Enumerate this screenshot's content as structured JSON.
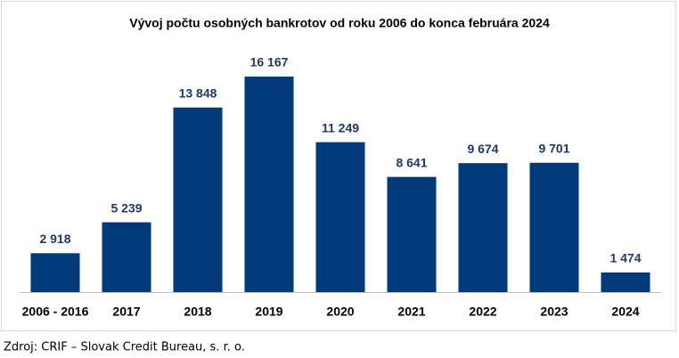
{
  "chart_data": {
    "type": "bar",
    "title": "Vývoj počtu osobných bankrotov od roku 2006 do konca februára 2024",
    "categories": [
      "2006 - 2016",
      "2017",
      "2018",
      "2019",
      "2020",
      "2021",
      "2022",
      "2023",
      "2024"
    ],
    "values": [
      2918,
      5239,
      13848,
      16167,
      11249,
      8641,
      9674,
      9701,
      1474
    ],
    "value_labels": [
      "2 918",
      "5 239",
      "13 848",
      "16 167",
      "11 249",
      "8 641",
      "9 674",
      "9 701",
      "1 474"
    ],
    "color": "#023a7a",
    "source": "Zdroj: CRIF – Slovak Credit Bureau, s. r. o."
  }
}
